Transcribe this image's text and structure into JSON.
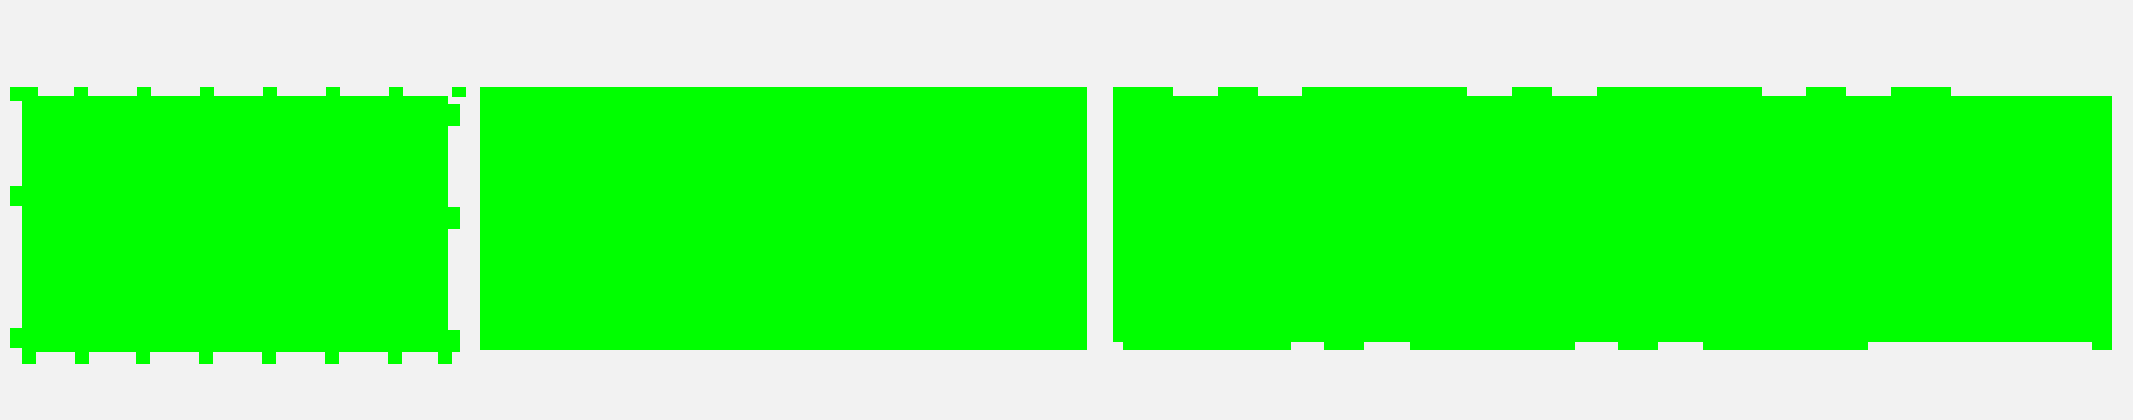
{
  "colors": {
    "background": "#f2f2f2",
    "fill": "#00ff00"
  },
  "shapes": [
    {
      "name": "jagged-block-left",
      "edge_style": "notched-dashed"
    },
    {
      "name": "solid-block-center",
      "edge_style": "solid"
    },
    {
      "name": "notched-block-right",
      "edge_style": "notched-sparse"
    }
  ]
}
